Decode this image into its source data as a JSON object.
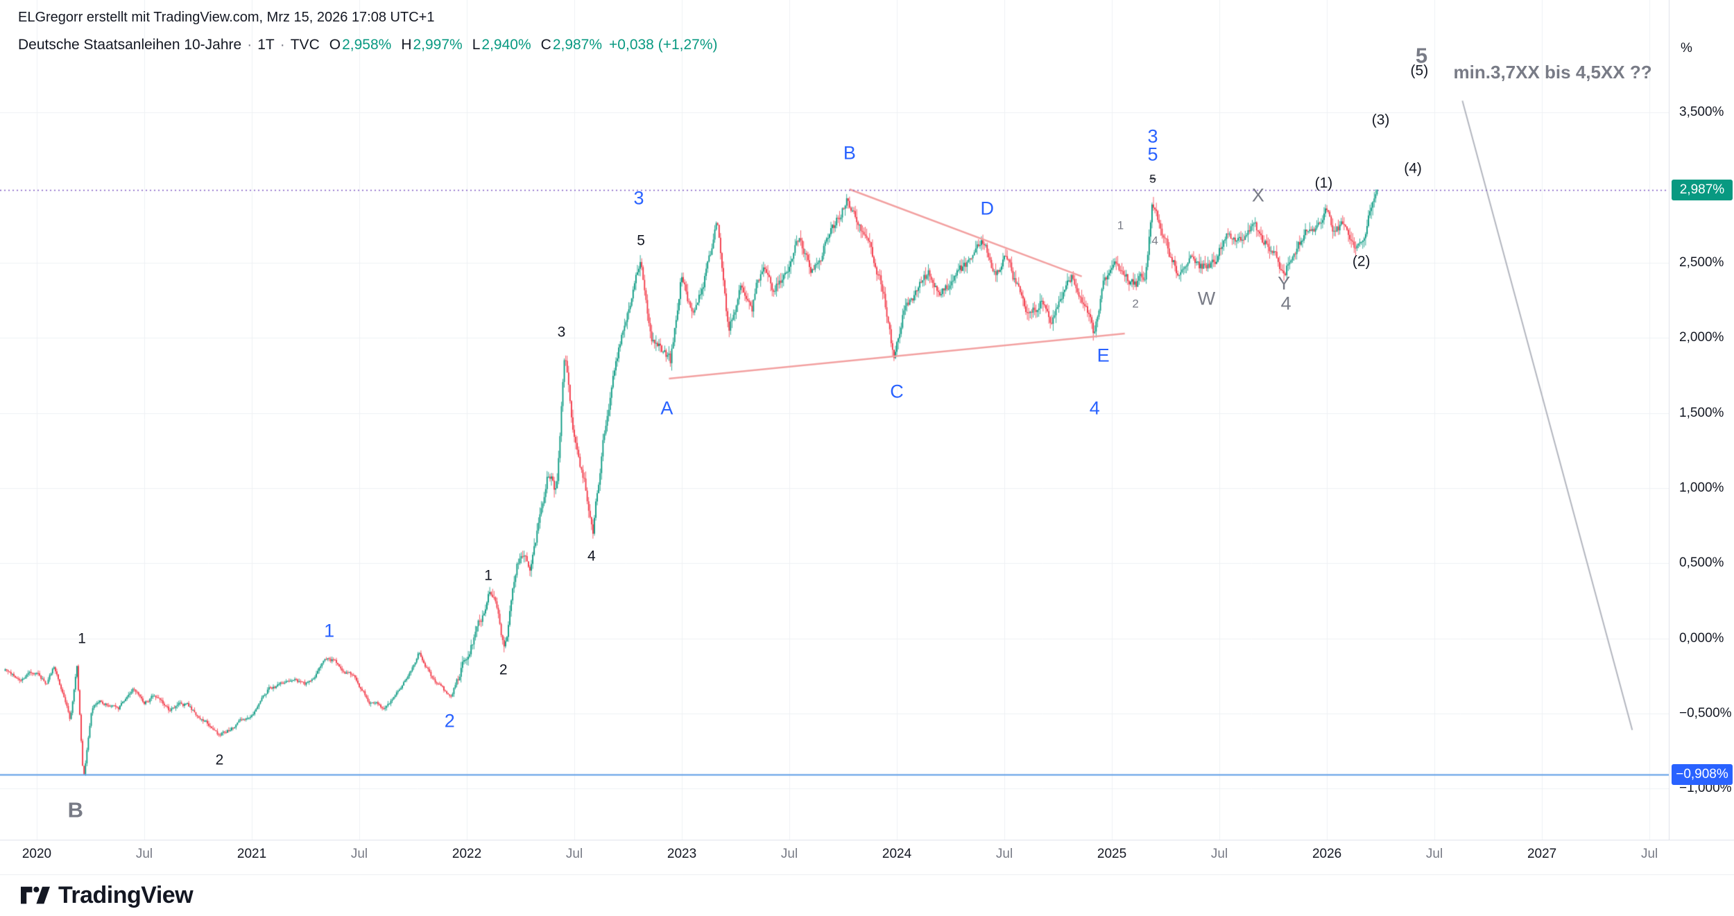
{
  "header": {
    "attribution": "ELGregorr erstellt mit TradingView.com, Mrz 15, 2026 17:08 UTC+1",
    "symbol": "Deutsche Staatsanleihen 10-Jahre",
    "separator": "·",
    "interval": "1T",
    "exchange": "TVC",
    "ohlc": {
      "open_label": "O",
      "open": "2,958%",
      "high_label": "H",
      "high": "2,997%",
      "low_label": "L",
      "low": "2,940%",
      "close_label": "C",
      "close": "2,987%",
      "change": "+0,038 (+1,27%)"
    }
  },
  "footer": {
    "brand": "TradingView"
  },
  "chart_data": {
    "type": "candlestick",
    "title": "Deutsche Staatsanleihen 10-Jahre · 1T · TVC",
    "ylabel": "%",
    "x_domain": [
      2019.829,
      2027.59
    ],
    "y_domain": [
      -1.34,
      4.25
    ],
    "grid": true,
    "up_color": "#089981",
    "down_color": "#F23645",
    "last_price": 2.987,
    "series_anchors": [
      [
        2019.85,
        -0.2
      ],
      [
        2019.92,
        -0.26
      ],
      [
        2020.0,
        -0.22
      ],
      [
        2020.05,
        -0.3
      ],
      [
        2020.08,
        -0.2
      ],
      [
        2020.12,
        -0.38
      ],
      [
        2020.16,
        -0.55
      ],
      [
        2020.19,
        -0.2
      ],
      [
        2020.22,
        -0.95
      ],
      [
        2020.26,
        -0.5
      ],
      [
        2020.3,
        -0.42
      ],
      [
        2020.38,
        -0.48
      ],
      [
        2020.45,
        -0.35
      ],
      [
        2020.5,
        -0.45
      ],
      [
        2020.55,
        -0.4
      ],
      [
        2020.62,
        -0.5
      ],
      [
        2020.7,
        -0.45
      ],
      [
        2020.78,
        -0.55
      ],
      [
        2020.85,
        -0.64
      ],
      [
        2020.92,
        -0.58
      ],
      [
        2021.0,
        -0.52
      ],
      [
        2021.08,
        -0.35
      ],
      [
        2021.15,
        -0.28
      ],
      [
        2021.25,
        -0.32
      ],
      [
        2021.36,
        -0.12
      ],
      [
        2021.45,
        -0.22
      ],
      [
        2021.55,
        -0.42
      ],
      [
        2021.62,
        -0.5
      ],
      [
        2021.7,
        -0.35
      ],
      [
        2021.78,
        -0.1
      ],
      [
        2021.85,
        -0.28
      ],
      [
        2021.93,
        -0.4
      ],
      [
        2022.0,
        -0.12
      ],
      [
        2022.05,
        0.02
      ],
      [
        2022.11,
        0.3
      ],
      [
        2022.15,
        0.15
      ],
      [
        2022.18,
        -0.07
      ],
      [
        2022.24,
        0.55
      ],
      [
        2022.3,
        0.48
      ],
      [
        2022.34,
        0.85
      ],
      [
        2022.38,
        1.1
      ],
      [
        2022.42,
        0.95
      ],
      [
        2022.46,
        1.9
      ],
      [
        2022.5,
        1.35
      ],
      [
        2022.55,
        1.05
      ],
      [
        2022.59,
        0.7
      ],
      [
        2022.64,
        1.35
      ],
      [
        2022.7,
        1.8
      ],
      [
        2022.75,
        2.1
      ],
      [
        2022.81,
        2.45
      ],
      [
        2022.86,
        2.0
      ],
      [
        2022.9,
        1.95
      ],
      [
        2022.95,
        1.8
      ],
      [
        2023.0,
        2.4
      ],
      [
        2023.05,
        2.15
      ],
      [
        2023.1,
        2.35
      ],
      [
        2023.17,
        2.72
      ],
      [
        2023.22,
        2.0
      ],
      [
        2023.28,
        2.35
      ],
      [
        2023.33,
        2.25
      ],
      [
        2023.38,
        2.5
      ],
      [
        2023.43,
        2.3
      ],
      [
        2023.5,
        2.45
      ],
      [
        2023.55,
        2.62
      ],
      [
        2023.6,
        2.48
      ],
      [
        2023.66,
        2.62
      ],
      [
        2023.72,
        2.8
      ],
      [
        2023.77,
        2.97
      ],
      [
        2023.82,
        2.8
      ],
      [
        2023.88,
        2.62
      ],
      [
        2023.93,
        2.4
      ],
      [
        2023.99,
        1.92
      ],
      [
        2024.04,
        2.22
      ],
      [
        2024.1,
        2.32
      ],
      [
        2024.16,
        2.42
      ],
      [
        2024.21,
        2.3
      ],
      [
        2024.27,
        2.42
      ],
      [
        2024.33,
        2.5
      ],
      [
        2024.4,
        2.66
      ],
      [
        2024.46,
        2.48
      ],
      [
        2024.52,
        2.58
      ],
      [
        2024.57,
        2.35
      ],
      [
        2024.62,
        2.18
      ],
      [
        2024.68,
        2.28
      ],
      [
        2024.72,
        2.08
      ],
      [
        2024.77,
        2.28
      ],
      [
        2024.82,
        2.38
      ],
      [
        2024.87,
        2.25
      ],
      [
        2024.92,
        2.04
      ],
      [
        2024.97,
        2.38
      ],
      [
        2025.02,
        2.48
      ],
      [
        2025.07,
        2.42
      ],
      [
        2025.12,
        2.38
      ],
      [
        2025.16,
        2.45
      ],
      [
        2025.19,
        2.92
      ],
      [
        2025.23,
        2.8
      ],
      [
        2025.28,
        2.58
      ],
      [
        2025.31,
        2.46
      ],
      [
        2025.36,
        2.62
      ],
      [
        2025.41,
        2.52
      ],
      [
        2025.46,
        2.46
      ],
      [
        2025.52,
        2.6
      ],
      [
        2025.57,
        2.7
      ],
      [
        2025.62,
        2.64
      ],
      [
        2025.67,
        2.76
      ],
      [
        2025.72,
        2.68
      ],
      [
        2025.77,
        2.56
      ],
      [
        2025.81,
        2.48
      ],
      [
        2025.86,
        2.62
      ],
      [
        2025.91,
        2.72
      ],
      [
        2025.96,
        2.8
      ],
      [
        2026.0,
        2.88
      ],
      [
        2026.04,
        2.74
      ],
      [
        2026.08,
        2.82
      ],
      [
        2026.12,
        2.72
      ],
      [
        2026.16,
        2.62
      ],
      [
        2026.19,
        2.76
      ],
      [
        2026.22,
        2.9
      ],
      [
        2026.24,
        2.987
      ]
    ],
    "axes": {
      "percent_symbol": "%",
      "price_ticks": [
        {
          "label": "3,500%",
          "value": 3.5
        },
        {
          "label": "2,500%",
          "value": 2.5
        },
        {
          "label": "2,000%",
          "value": 2.0
        },
        {
          "label": "1,500%",
          "value": 1.5
        },
        {
          "label": "1,000%",
          "value": 1.0
        },
        {
          "label": "0,500%",
          "value": 0.5
        },
        {
          "label": "0,000%",
          "value": 0.0
        },
        {
          "label": "−0,500%",
          "value": -0.5
        },
        {
          "label": "−1,000%",
          "value": -1.0
        }
      ],
      "badges": [
        {
          "label": "2,987%",
          "value": 2.987,
          "bg": "#089981"
        },
        {
          "label": "−0,908%",
          "value": -0.908,
          "bg": "#2962FF"
        }
      ],
      "time_ticks": [
        {
          "label": "2020",
          "t": 2020.0,
          "major": true
        },
        {
          "label": "Jul",
          "t": 2020.5,
          "major": false
        },
        {
          "label": "2021",
          "t": 2021.0,
          "major": true
        },
        {
          "label": "Jul",
          "t": 2021.5,
          "major": false
        },
        {
          "label": "2022",
          "t": 2022.0,
          "major": true
        },
        {
          "label": "Jul",
          "t": 2022.5,
          "major": false
        },
        {
          "label": "2023",
          "t": 2023.0,
          "major": true
        },
        {
          "label": "Jul",
          "t": 2023.5,
          "major": false
        },
        {
          "label": "2024",
          "t": 2024.0,
          "major": true
        },
        {
          "label": "Jul",
          "t": 2024.5,
          "major": false
        },
        {
          "label": "2025",
          "t": 2025.0,
          "major": true
        },
        {
          "label": "Jul",
          "t": 2025.5,
          "major": false
        },
        {
          "label": "2026",
          "t": 2026.0,
          "major": true
        },
        {
          "label": "Jul",
          "t": 2026.5,
          "major": false
        },
        {
          "label": "2027",
          "t": 2027.0,
          "major": true
        },
        {
          "label": "Jul",
          "t": 2027.5,
          "major": false
        }
      ]
    },
    "h_lines": [
      {
        "value": 2.987,
        "color": "#7E57C2",
        "style": "dotted",
        "width": 1.5
      },
      {
        "value": -0.908,
        "color": "#5C9CE6",
        "style": "solid",
        "width": 2
      }
    ],
    "trend_lines": [
      {
        "x1": 2023.78,
        "y1": 2.99,
        "x2": 2024.86,
        "y2": 2.41,
        "color": "#F2A0A0",
        "width": 2.5
      },
      {
        "x1": 2022.94,
        "y1": 1.73,
        "x2": 2025.06,
        "y2": 2.03,
        "color": "#F2A0A0",
        "width": 2.5
      },
      {
        "x1": 2026.63,
        "y1": 3.58,
        "x2": 2027.42,
        "y2": -0.61,
        "color": "#B2B5BE",
        "width": 2
      }
    ],
    "wave_labels": [
      {
        "text": "1",
        "t": 2020.21,
        "v": 0.0,
        "style": "black"
      },
      {
        "text": "2",
        "t": 2020.85,
        "v": -0.81,
        "style": "black"
      },
      {
        "text": "B",
        "t": 2020.18,
        "v": -1.14,
        "style": "gray-big"
      },
      {
        "text": "1",
        "t": 2021.36,
        "v": 0.05,
        "style": "blue"
      },
      {
        "text": "2",
        "t": 2021.92,
        "v": -0.55,
        "style": "blue"
      },
      {
        "text": "1",
        "t": 2022.1,
        "v": 0.42,
        "style": "black"
      },
      {
        "text": "2",
        "t": 2022.17,
        "v": -0.21,
        "style": "black"
      },
      {
        "text": "3",
        "t": 2022.44,
        "v": 2.04,
        "style": "black"
      },
      {
        "text": "4",
        "t": 2022.58,
        "v": 0.55,
        "style": "black"
      },
      {
        "text": "5",
        "t": 2022.81,
        "v": 2.65,
        "style": "black"
      },
      {
        "text": "3",
        "t": 2022.8,
        "v": 2.93,
        "style": "blue"
      },
      {
        "text": "A",
        "t": 2022.93,
        "v": 1.53,
        "style": "blue"
      },
      {
        "text": "B",
        "t": 2023.78,
        "v": 3.23,
        "style": "blue"
      },
      {
        "text": "C",
        "t": 2024.0,
        "v": 1.64,
        "style": "blue"
      },
      {
        "text": "D",
        "t": 2024.42,
        "v": 2.86,
        "style": "blue"
      },
      {
        "text": "4",
        "t": 2024.92,
        "v": 1.53,
        "style": "blue"
      },
      {
        "text": "E",
        "t": 2024.96,
        "v": 1.88,
        "style": "blue"
      },
      {
        "text": "3",
        "t": 2025.19,
        "v": 3.34,
        "style": "blue"
      },
      {
        "text": "5",
        "t": 2025.19,
        "v": 3.22,
        "style": "blue"
      },
      {
        "text": "5",
        "t": 2025.19,
        "v": 3.06,
        "style": "black-small",
        "struck": true
      },
      {
        "text": "1",
        "t": 2025.04,
        "v": 2.75,
        "style": "gray-small"
      },
      {
        "text": "2",
        "t": 2025.11,
        "v": 2.23,
        "style": "gray-small"
      },
      {
        "text": "4",
        "t": 2025.2,
        "v": 2.65,
        "style": "gray-small"
      },
      {
        "text": "W",
        "t": 2025.44,
        "v": 2.26,
        "style": "gray"
      },
      {
        "text": "X",
        "t": 2025.68,
        "v": 2.95,
        "style": "gray"
      },
      {
        "text": "Y",
        "t": 2025.8,
        "v": 2.36,
        "style": "gray"
      },
      {
        "text": "4",
        "t": 2025.81,
        "v": 2.23,
        "style": "gray"
      },
      {
        "text": "(1)",
        "t": 2025.985,
        "v": 3.03,
        "style": "black"
      },
      {
        "text": "(2)",
        "t": 2026.16,
        "v": 2.51,
        "style": "black"
      },
      {
        "text": "(3)",
        "t": 2026.25,
        "v": 3.45,
        "style": "black"
      },
      {
        "text": "(4)",
        "t": 2026.4,
        "v": 3.13,
        "style": "black"
      },
      {
        "text": "(5)",
        "t": 2026.43,
        "v": 3.78,
        "style": "black"
      },
      {
        "text": "5",
        "t": 2026.44,
        "v": 3.88,
        "style": "gray-big"
      }
    ],
    "annotation": {
      "text": "min.3,7XX bis 4,5XX ??",
      "t": 2027.05,
      "v": 3.77
    }
  }
}
